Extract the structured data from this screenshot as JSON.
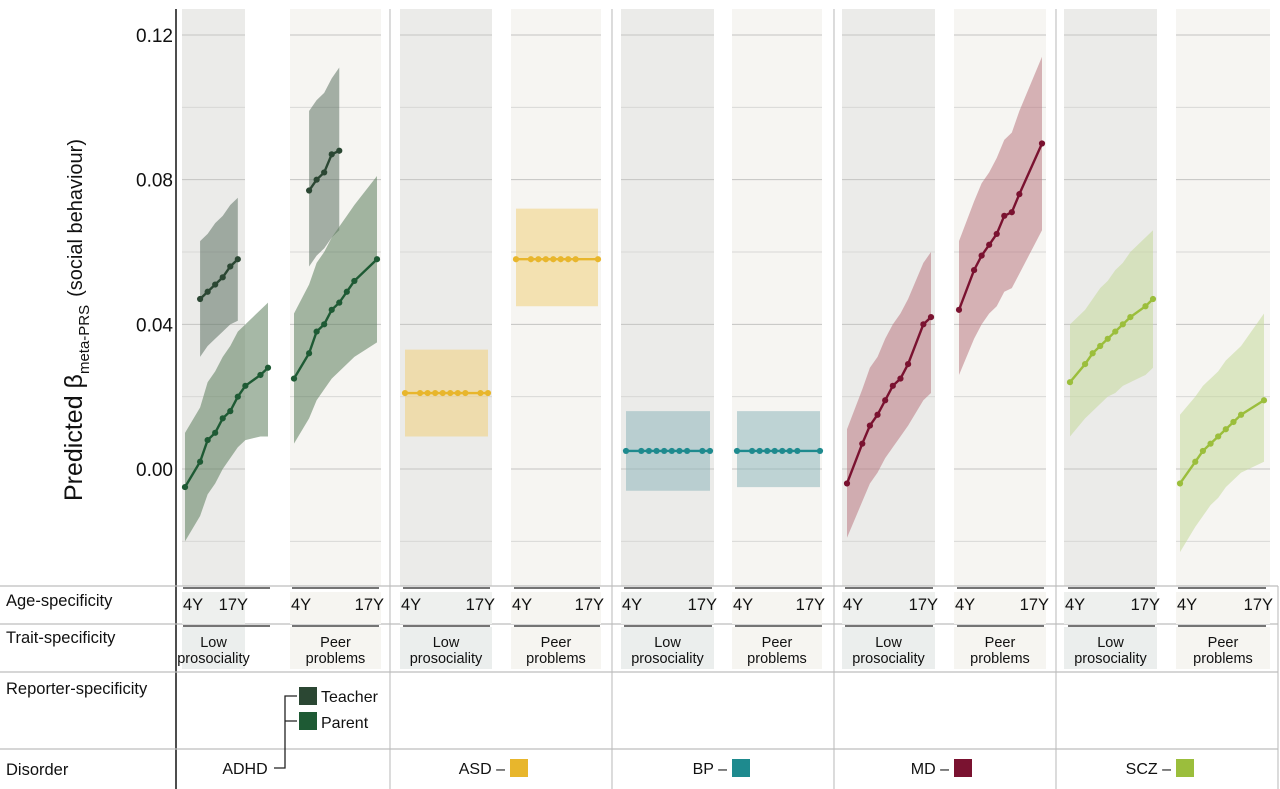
{
  "chart_data": {
    "type": "line",
    "ylabel_main": "Predicted β",
    "ylabel_subscript": "meta-PRS",
    "ylabel_suffix": "(social behaviour)",
    "ylim": [
      -0.03,
      0.127
    ],
    "yticks": [
      "0.12",
      "0.08",
      "0.04",
      "0.00"
    ],
    "ytick_values": [
      0.12,
      0.08,
      0.04,
      0.0
    ],
    "grid": true,
    "row_labels": {
      "age": "Age-specificity",
      "trait": "Trait-specificity",
      "reporter": "Reporter-specificity",
      "disorder": "Disorder"
    },
    "age_labels": {
      "start": "4Y",
      "end": "17Y"
    },
    "reporter_legend": {
      "teacher": "Teacher",
      "parent": "Parent"
    },
    "disorders": [
      {
        "name": "ADHD",
        "color": "#1e5a34",
        "band_color": "#5c7d5c",
        "panels": [
          {
            "trait": "Low prosociality",
            "series": [
              {
                "reporter": "Teacher",
                "color": "#2b4733",
                "ages": [
                  5,
                  6,
                  7,
                  8,
                  9,
                  10
                ],
                "values": [
                  0.047,
                  0.049,
                  0.051,
                  0.053,
                  0.056,
                  0.058
                ],
                "lower": [
                  0.031,
                  0.034,
                  0.036,
                  0.038,
                  0.04,
                  0.041
                ],
                "upper": [
                  0.063,
                  0.065,
                  0.068,
                  0.07,
                  0.073,
                  0.075
                ]
              },
              {
                "reporter": "Parent",
                "color": "#1e5a34",
                "ages": [
                  3,
                  5,
                  6,
                  7,
                  8,
                  9,
                  10,
                  11,
                  13,
                  14
                ],
                "values": [
                  -0.005,
                  0.002,
                  0.008,
                  0.01,
                  0.014,
                  0.016,
                  0.02,
                  0.023,
                  0.026,
                  0.028
                ],
                "lower": [
                  -0.02,
                  -0.013,
                  -0.007,
                  -0.004,
                  0.0,
                  0.003,
                  0.006,
                  0.008,
                  0.009,
                  0.009
                ],
                "upper": [
                  0.01,
                  0.017,
                  0.024,
                  0.027,
                  0.031,
                  0.034,
                  0.038,
                  0.04,
                  0.044,
                  0.046
                ]
              }
            ]
          },
          {
            "trait": "Peer problems",
            "series": [
              {
                "reporter": "Teacher",
                "color": "#2b4733",
                "ages": [
                  5,
                  6,
                  7,
                  8,
                  9
                ],
                "values": [
                  0.077,
                  0.08,
                  0.082,
                  0.087,
                  0.088
                ],
                "lower": [
                  0.056,
                  0.059,
                  0.061,
                  0.064,
                  0.066
                ],
                "upper": [
                  0.099,
                  0.102,
                  0.104,
                  0.108,
                  0.111
                ]
              },
              {
                "reporter": "Parent",
                "color": "#1e5a34",
                "ages": [
                  3,
                  5,
                  6,
                  7,
                  8,
                  9,
                  10,
                  11,
                  14
                ],
                "values": [
                  0.025,
                  0.032,
                  0.038,
                  0.04,
                  0.044,
                  0.046,
                  0.049,
                  0.052,
                  0.058
                ],
                "lower": [
                  0.007,
                  0.014,
                  0.019,
                  0.022,
                  0.025,
                  0.027,
                  0.029,
                  0.031,
                  0.035
                ],
                "upper": [
                  0.043,
                  0.051,
                  0.057,
                  0.06,
                  0.064,
                  0.067,
                  0.07,
                  0.073,
                  0.081
                ]
              }
            ]
          }
        ]
      },
      {
        "name": "ASD",
        "color": "#e8b62c",
        "band_color": "#f0cf7c",
        "panels": [
          {
            "trait": "Low prosociality",
            "series": [
              {
                "color": "#e8b62c",
                "ages": [
                  3,
                  5,
                  6,
                  7,
                  8,
                  9,
                  10,
                  11,
                  13,
                  14
                ],
                "values": [
                  0.021,
                  0.021,
                  0.021,
                  0.021,
                  0.021,
                  0.021,
                  0.021,
                  0.021,
                  0.021,
                  0.021
                ],
                "lower": [
                  0.009,
                  0.009,
                  0.009,
                  0.009,
                  0.009,
                  0.009,
                  0.009,
                  0.009,
                  0.009,
                  0.009
                ],
                "upper": [
                  0.033,
                  0.033,
                  0.033,
                  0.033,
                  0.033,
                  0.033,
                  0.033,
                  0.033,
                  0.033,
                  0.033
                ]
              }
            ]
          },
          {
            "trait": "Peer problems",
            "series": [
              {
                "color": "#e8b62c",
                "ages": [
                  3,
                  5,
                  6,
                  7,
                  8,
                  9,
                  10,
                  11,
                  14
                ],
                "values": [
                  0.058,
                  0.058,
                  0.058,
                  0.058,
                  0.058,
                  0.058,
                  0.058,
                  0.058,
                  0.058
                ],
                "lower": [
                  0.045,
                  0.045,
                  0.045,
                  0.045,
                  0.045,
                  0.045,
                  0.045,
                  0.045,
                  0.045
                ],
                "upper": [
                  0.072,
                  0.072,
                  0.072,
                  0.072,
                  0.072,
                  0.072,
                  0.072,
                  0.072,
                  0.072
                ]
              }
            ]
          }
        ]
      },
      {
        "name": "BP",
        "color": "#1e8a8e",
        "band_color": "#8fb6bb",
        "panels": [
          {
            "trait": "Low prosociality",
            "series": [
              {
                "color": "#1e8a8e",
                "ages": [
                  3,
                  5,
                  6,
                  7,
                  8,
                  9,
                  10,
                  11,
                  13,
                  14
                ],
                "values": [
                  0.005,
                  0.005,
                  0.005,
                  0.005,
                  0.005,
                  0.005,
                  0.005,
                  0.005,
                  0.005,
                  0.005
                ],
                "lower": [
                  -0.006,
                  -0.006,
                  -0.006,
                  -0.006,
                  -0.006,
                  -0.006,
                  -0.006,
                  -0.006,
                  -0.006,
                  -0.006
                ],
                "upper": [
                  0.016,
                  0.016,
                  0.016,
                  0.016,
                  0.016,
                  0.016,
                  0.016,
                  0.016,
                  0.016,
                  0.016
                ]
              }
            ]
          },
          {
            "trait": "Peer problems",
            "series": [
              {
                "color": "#1e8a8e",
                "ages": [
                  3,
                  5,
                  6,
                  7,
                  8,
                  9,
                  10,
                  11,
                  14
                ],
                "values": [
                  0.005,
                  0.005,
                  0.005,
                  0.005,
                  0.005,
                  0.005,
                  0.005,
                  0.005,
                  0.005
                ],
                "lower": [
                  -0.005,
                  -0.005,
                  -0.005,
                  -0.005,
                  -0.005,
                  -0.005,
                  -0.005,
                  -0.005,
                  -0.005
                ],
                "upper": [
                  0.016,
                  0.016,
                  0.016,
                  0.016,
                  0.016,
                  0.016,
                  0.016,
                  0.016,
                  0.016
                ]
              }
            ]
          }
        ]
      },
      {
        "name": "MD",
        "color": "#7a1230",
        "band_color": "#b97982",
        "panels": [
          {
            "trait": "Low prosociality",
            "series": [
              {
                "color": "#7a1230",
                "ages": [
                  3,
                  5,
                  6,
                  7,
                  8,
                  9,
                  10,
                  11,
                  13,
                  14
                ],
                "values": [
                  -0.004,
                  0.007,
                  0.012,
                  0.015,
                  0.019,
                  0.023,
                  0.025,
                  0.029,
                  0.04,
                  0.042
                ],
                "lower": [
                  -0.019,
                  -0.009,
                  -0.004,
                  -0.001,
                  0.003,
                  0.006,
                  0.009,
                  0.012,
                  0.019,
                  0.021
                ],
                "upper": [
                  0.011,
                  0.022,
                  0.028,
                  0.031,
                  0.036,
                  0.04,
                  0.043,
                  0.047,
                  0.057,
                  0.06
                ]
              }
            ]
          },
          {
            "trait": "Peer problems",
            "series": [
              {
                "color": "#7a1230",
                "ages": [
                  3,
                  5,
                  6,
                  7,
                  8,
                  9,
                  10,
                  11,
                  14
                ],
                "values": [
                  0.044,
                  0.055,
                  0.059,
                  0.062,
                  0.065,
                  0.07,
                  0.071,
                  0.076,
                  0.09
                ],
                "lower": [
                  0.026,
                  0.036,
                  0.04,
                  0.043,
                  0.045,
                  0.049,
                  0.05,
                  0.054,
                  0.066
                ],
                "upper": [
                  0.063,
                  0.074,
                  0.079,
                  0.082,
                  0.086,
                  0.091,
                  0.093,
                  0.099,
                  0.114
                ]
              }
            ]
          }
        ]
      },
      {
        "name": "SCZ",
        "color": "#9bbe3c",
        "band_color": "#c5d99a",
        "panels": [
          {
            "trait": "Low prosociality",
            "series": [
              {
                "color": "#9bbe3c",
                "ages": [
                  3,
                  5,
                  6,
                  7,
                  8,
                  9,
                  10,
                  11,
                  13,
                  14
                ],
                "values": [
                  0.024,
                  0.029,
                  0.032,
                  0.034,
                  0.036,
                  0.038,
                  0.04,
                  0.042,
                  0.045,
                  0.047
                ],
                "lower": [
                  0.009,
                  0.014,
                  0.016,
                  0.018,
                  0.02,
                  0.021,
                  0.023,
                  0.024,
                  0.026,
                  0.028
                ],
                "upper": [
                  0.04,
                  0.044,
                  0.047,
                  0.05,
                  0.052,
                  0.055,
                  0.057,
                  0.06,
                  0.064,
                  0.066
                ]
              }
            ]
          },
          {
            "trait": "Peer problems",
            "series": [
              {
                "color": "#9bbe3c",
                "ages": [
                  3,
                  5,
                  6,
                  7,
                  8,
                  9,
                  10,
                  11,
                  14
                ],
                "values": [
                  -0.004,
                  0.002,
                  0.005,
                  0.007,
                  0.009,
                  0.011,
                  0.013,
                  0.015,
                  0.019
                ],
                "lower": [
                  -0.023,
                  -0.016,
                  -0.013,
                  -0.01,
                  -0.008,
                  -0.005,
                  -0.003,
                  -0.001,
                  0.002
                ],
                "upper": [
                  0.015,
                  0.02,
                  0.023,
                  0.025,
                  0.027,
                  0.03,
                  0.032,
                  0.034,
                  0.043
                ]
              }
            ]
          }
        ]
      }
    ]
  }
}
